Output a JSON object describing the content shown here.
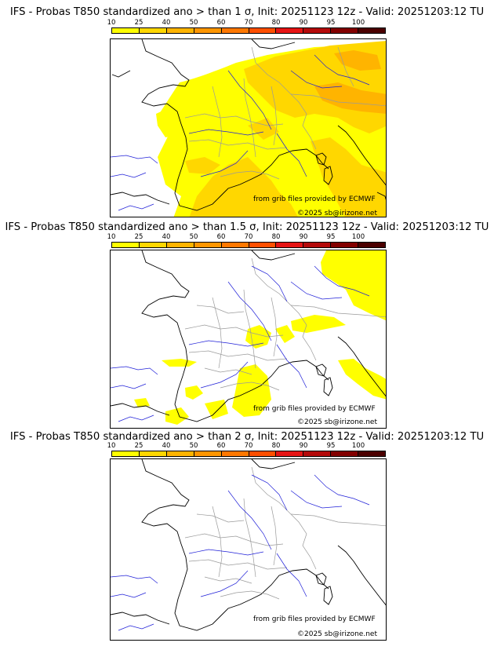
{
  "legend": {
    "ticks": [
      "10",
      "25",
      "40",
      "50",
      "60",
      "70",
      "80",
      "90",
      "95",
      "100"
    ],
    "colors": [
      "#ffff00",
      "#ffd700",
      "#ffb400",
      "#ff9600",
      "#ff7800",
      "#ff4f00",
      "#e61414",
      "#b40a0a",
      "#820000",
      "#4b0000"
    ]
  },
  "panels": [
    {
      "title": "IFS - Probas T850  standardized ano > than 1 σ, Init: 20251123 12z - Valid: 20251203:12 TU",
      "source": "from grib files provided by ECMWF",
      "copyright": "©2025 sb@irizone.net"
    },
    {
      "title": "IFS - Probas T850  standardized ano > than 1.5 σ, Init: 20251123 12z - Valid: 20251203:12 TU",
      "source": "from grib files provided by ECMWF",
      "copyright": "©2025 sb@irizone.net"
    },
    {
      "title": "IFS - Probas T850  standardized ano > than 2 σ, Init: 20251123 12z - Valid: 20251203:12 TU",
      "source": "from grib files provided by ECMWF",
      "copyright": "©2025 sb@irizone.net"
    }
  ],
  "map_colors": {
    "coast": "#000000",
    "borders": "#9a9a9a",
    "rivers": "#1f1fd8",
    "p10": "#ffff00",
    "p25": "#ffd700",
    "p40": "#ffb400"
  }
}
